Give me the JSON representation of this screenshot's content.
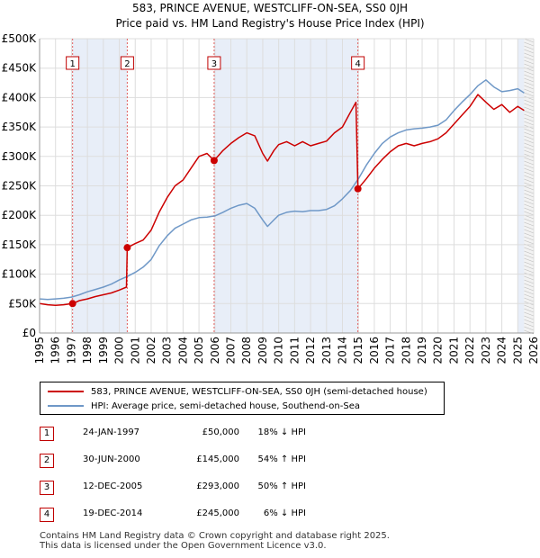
{
  "title_line1": "583, PRINCE AVENUE, WESTCLIFF-ON-SEA, SS0 0JH",
  "title_line2": "Price paid vs. HM Land Registry's House Price Index (HPI)",
  "legend": {
    "property": "583, PRINCE AVENUE, WESTCLIFF-ON-SEA, SS0 0JH (semi-detached house)",
    "hpi": "HPI: Average price, semi-detached house, Southend-on-Sea"
  },
  "colors": {
    "property": "#cc0000",
    "hpi": "#6f98c7",
    "band": "#e8eef8",
    "marker_line": "#e06060"
  },
  "transactions": [
    {
      "num": "1",
      "date": "24-JAN-1997",
      "price": "£50,000",
      "hpi": "18% ↓ HPI"
    },
    {
      "num": "2",
      "date": "30-JUN-2000",
      "price": "£145,000",
      "hpi": "54% ↑ HPI"
    },
    {
      "num": "3",
      "date": "12-DEC-2005",
      "price": "£293,000",
      "hpi": "50% ↑ HPI"
    },
    {
      "num": "4",
      "date": "19-DEC-2014",
      "price": "£245,000",
      "hpi": "6% ↓ HPI"
    }
  ],
  "footer": {
    "line1": "Contains HM Land Registry data © Crown copyright and database right 2025.",
    "line2": "This data is licensed under the Open Government Licence v3.0."
  },
  "chart_data": {
    "type": "line",
    "title": "583, PRINCE AVENUE, WESTCLIFF-ON-SEA, SS0 0JH",
    "subtitle": "Price paid vs. HM Land Registry's House Price Index (HPI)",
    "xlabel": "",
    "ylabel": "",
    "xlim": [
      1995,
      2026
    ],
    "ylim": [
      0,
      500000
    ],
    "y_ticks": [
      0,
      50000,
      100000,
      150000,
      200000,
      250000,
      300000,
      350000,
      400000,
      450000,
      500000
    ],
    "y_tick_labels": [
      "£0",
      "£50K",
      "£100K",
      "£150K",
      "£200K",
      "£250K",
      "£300K",
      "£350K",
      "£400K",
      "£450K",
      "£500K"
    ],
    "x_ticks": [
      1995,
      1996,
      1997,
      1998,
      1999,
      2000,
      2001,
      2002,
      2003,
      2004,
      2005,
      2006,
      2007,
      2008,
      2009,
      2010,
      2011,
      2012,
      2013,
      2014,
      2015,
      2016,
      2017,
      2018,
      2019,
      2020,
      2021,
      2022,
      2023,
      2024,
      2025,
      2026
    ],
    "grid": true,
    "legend_position": "below",
    "sales": [
      {
        "label": "1",
        "x": 1997.07,
        "y": 50000
      },
      {
        "label": "2",
        "x": 2000.5,
        "y": 145000
      },
      {
        "label": "3",
        "x": 2005.95,
        "y": 293000
      },
      {
        "label": "4",
        "x": 2014.97,
        "y": 245000
      }
    ],
    "series": [
      {
        "name": "583, PRINCE AVENUE, WESTCLIFF-ON-SEA, SS0 0JH (semi-detached house)",
        "x": [
          1995,
          1995.5,
          1996,
          1996.5,
          1997.07,
          1997.5,
          1998,
          1998.5,
          1999,
          1999.5,
          2000,
          2000.45,
          2000.5,
          2001,
          2001.5,
          2002,
          2002.5,
          2003,
          2003.5,
          2004,
          2004.5,
          2005,
          2005.5,
          2005.95,
          2006.5,
          2007,
          2007.5,
          2008,
          2008.5,
          2009,
          2009.3,
          2009.7,
          2010,
          2010.5,
          2011,
          2011.5,
          2012,
          2012.5,
          2013,
          2013.5,
          2014,
          2014.5,
          2014.85,
          2014.97,
          2015.5,
          2016,
          2016.5,
          2017,
          2017.5,
          2018,
          2018.5,
          2019,
          2019.5,
          2020,
          2020.5,
          2021,
          2021.5,
          2022,
          2022.5,
          2023,
          2023.5,
          2024,
          2024.5,
          2025,
          2025.4
        ],
        "y": [
          50000,
          48000,
          47000,
          48000,
          50000,
          55000,
          58000,
          62000,
          65000,
          68000,
          73000,
          78000,
          145000,
          152000,
          158000,
          175000,
          205000,
          230000,
          250000,
          260000,
          280000,
          300000,
          305000,
          293000,
          310000,
          322000,
          332000,
          340000,
          335000,
          305000,
          292000,
          310000,
          320000,
          325000,
          318000,
          325000,
          318000,
          322000,
          326000,
          340000,
          350000,
          375000,
          392000,
          245000,
          262000,
          280000,
          295000,
          308000,
          318000,
          322000,
          318000,
          322000,
          325000,
          330000,
          340000,
          355000,
          370000,
          385000,
          405000,
          392000,
          380000,
          388000,
          375000,
          385000,
          378000
        ]
      },
      {
        "name": "HPI: Average price, semi-detached house, Southend-on-Sea",
        "x": [
          1995,
          1995.5,
          1996,
          1996.5,
          1997,
          1997.5,
          1998,
          1998.5,
          1999,
          1999.5,
          2000,
          2000.5,
          2001,
          2001.5,
          2002,
          2002.5,
          2003,
          2003.5,
          2004,
          2004.5,
          2005,
          2005.5,
          2006,
          2006.5,
          2007,
          2007.5,
          2008,
          2008.5,
          2009,
          2009.3,
          2009.7,
          2010,
          2010.5,
          2011,
          2011.5,
          2012,
          2012.5,
          2013,
          2013.5,
          2014,
          2014.5,
          2015,
          2015.5,
          2016,
          2016.5,
          2017,
          2017.5,
          2018,
          2018.5,
          2019,
          2019.5,
          2020,
          2020.5,
          2021,
          2021.5,
          2022,
          2022.5,
          2023,
          2023.5,
          2024,
          2024.5,
          2025,
          2025.4
        ],
        "y": [
          58000,
          57000,
          58000,
          59000,
          61000,
          65000,
          70000,
          74000,
          78000,
          83000,
          90000,
          96000,
          103000,
          112000,
          125000,
          148000,
          165000,
          178000,
          185000,
          192000,
          196000,
          197000,
          199000,
          205000,
          212000,
          217000,
          220000,
          212000,
          192000,
          181000,
          192000,
          200000,
          205000,
          207000,
          206000,
          208000,
          208000,
          210000,
          216000,
          228000,
          242000,
          262000,
          285000,
          305000,
          322000,
          333000,
          340000,
          345000,
          347000,
          348000,
          350000,
          353000,
          362000,
          378000,
          392000,
          405000,
          420000,
          430000,
          418000,
          410000,
          412000,
          415000,
          408000
        ]
      }
    ]
  }
}
